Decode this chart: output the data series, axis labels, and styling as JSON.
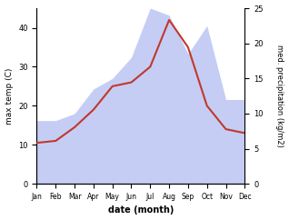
{
  "months": [
    "Jan",
    "Feb",
    "Mar",
    "Apr",
    "May",
    "Jun",
    "Jul",
    "Aug",
    "Sep",
    "Oct",
    "Nov",
    "Dec"
  ],
  "temp": [
    10.5,
    11.0,
    14.5,
    19.0,
    25.0,
    26.0,
    30.0,
    42.0,
    35.0,
    20.0,
    14.0,
    13.0
  ],
  "precip": [
    9.0,
    9.0,
    10.0,
    13.5,
    15.0,
    18.0,
    25.0,
    24.0,
    18.5,
    22.5,
    12.0,
    12.0
  ],
  "temp_color": "#c0392b",
  "precip_fill_color": "#c5cdf5",
  "xlabel": "date (month)",
  "ylabel_left": "max temp (C)",
  "ylabel_right": "med. precipitation (kg/m2)",
  "ylim_left": [
    0,
    45
  ],
  "ylim_right": [
    0,
    25
  ],
  "yticks_left": [
    0,
    10,
    20,
    30,
    40
  ],
  "yticks_right": [
    0,
    5,
    10,
    15,
    20,
    25
  ],
  "bg_color": "#ffffff",
  "fig_width": 3.18,
  "fig_height": 2.42,
  "dpi": 100
}
